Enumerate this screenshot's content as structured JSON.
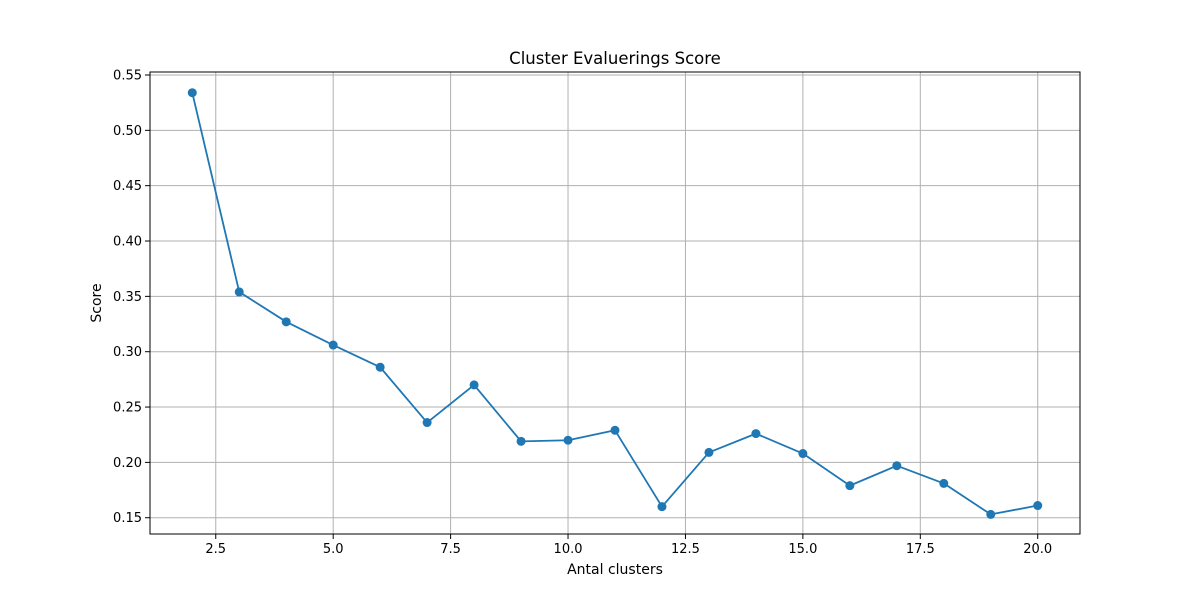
{
  "chart_data": {
    "type": "line",
    "title": "Cluster Evaluerings Score",
    "xlabel": "Antal clusters",
    "ylabel": "Score",
    "xlim": [
      1.1,
      20.9
    ],
    "ylim": [
      0.1353,
      0.5527
    ],
    "xticks": [
      2.5,
      5.0,
      7.5,
      10.0,
      12.5,
      15.0,
      17.5,
      20.0
    ],
    "xtick_labels": [
      "2.5",
      "5.0",
      "7.5",
      "10.0",
      "12.5",
      "15.0",
      "17.5",
      "20.0"
    ],
    "yticks": [
      0.15,
      0.2,
      0.25,
      0.3,
      0.35,
      0.4,
      0.45,
      0.5,
      0.55
    ],
    "ytick_labels": [
      "0.15",
      "0.20",
      "0.25",
      "0.30",
      "0.35",
      "0.40",
      "0.45",
      "0.50",
      "0.55"
    ],
    "grid": true,
    "marker": "circle",
    "line_color": "#1f77b4",
    "series": [
      {
        "x": [
          2,
          3,
          4,
          5,
          6,
          7,
          8,
          9,
          10,
          11,
          12,
          13,
          14,
          15,
          16,
          17,
          18,
          19,
          20
        ],
        "values": [
          0.534,
          0.354,
          0.327,
          0.306,
          0.286,
          0.236,
          0.27,
          0.219,
          0.22,
          0.229,
          0.16,
          0.209,
          0.226,
          0.208,
          0.179,
          0.197,
          0.181,
          0.153,
          0.161
        ]
      }
    ]
  }
}
